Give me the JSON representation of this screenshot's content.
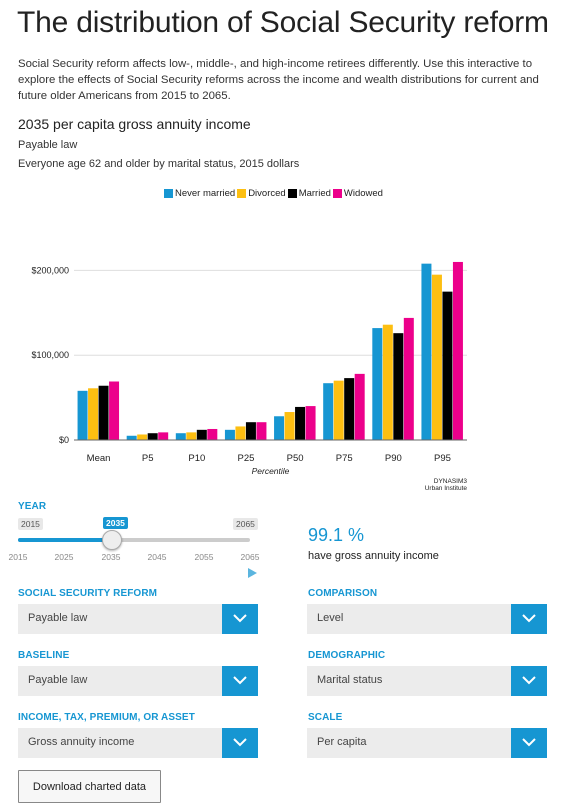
{
  "page": {
    "title": "The distribution of Social Security reform",
    "intro": "Social Security reform affects low-, middle-, and high-income retirees differently. Use this interactive to explore the effects of Social Security reforms across the income and wealth distributions for current and future older Americans from 2015 to 2065."
  },
  "chart_header": {
    "title": "2035 per capita gross annuity income",
    "subtitle": "Payable law",
    "subtitle2": "Everyone age 62 and older by marital status, 2015 dollars"
  },
  "chart_data": {
    "type": "bar",
    "categories": [
      "Mean",
      "P5",
      "P10",
      "P25",
      "P50",
      "P75",
      "P90",
      "P95"
    ],
    "series": [
      {
        "name": "Never married",
        "color": "#1696d2",
        "values": [
          58000,
          5000,
          8000,
          12000,
          28000,
          67000,
          132000,
          208000
        ]
      },
      {
        "name": "Divorced",
        "color": "#fdbf11",
        "values": [
          61000,
          6500,
          9000,
          16000,
          33000,
          70000,
          136000,
          195000
        ]
      },
      {
        "name": "Married",
        "color": "#000000",
        "values": [
          64000,
          8000,
          12000,
          21000,
          39000,
          73000,
          126000,
          175000
        ]
      },
      {
        "name": "Widowed",
        "color": "#ec008b",
        "values": [
          69000,
          9000,
          13000,
          21000,
          40000,
          78000,
          144000,
          210000
        ]
      }
    ],
    "yticks": [
      0,
      100000,
      200000
    ],
    "ytick_labels": [
      "$0",
      "$100,000",
      "$200,000"
    ],
    "ylim": [
      0,
      230000
    ],
    "xlabel": "Percentile",
    "ylabel": "",
    "source_line1": "DYNASIM3",
    "source_line2": "Urban Institute",
    "grid": true
  },
  "year_slider": {
    "label": "YEAR",
    "min": "2015",
    "max": "2065",
    "current": "2035",
    "current_value": 2035,
    "min_value": 2015,
    "max_value": 2065,
    "ticks": [
      "2015",
      "2025",
      "2035",
      "2045",
      "2055",
      "2065"
    ]
  },
  "stat": {
    "value": "99.1 %",
    "text": "have gross annuity income"
  },
  "controls": {
    "reform_label": "SOCIAL SECURITY REFORM",
    "reform_value": "Payable law",
    "comparison_label": "COMPARISON",
    "comparison_value": "Level",
    "baseline_label": "BASELINE",
    "baseline_value": "Payable law",
    "demographic_label": "DEMOGRAPHIC",
    "demographic_value": "Marital status",
    "income_label": "INCOME, TAX, PREMIUM, OR ASSET",
    "income_value": "Gross annuity income",
    "scale_label": "SCALE",
    "scale_value": "Per capita"
  },
  "download": {
    "label": "Download charted data"
  },
  "icons": {
    "dropdown": "chevron-down-icon",
    "play": "play-icon"
  }
}
